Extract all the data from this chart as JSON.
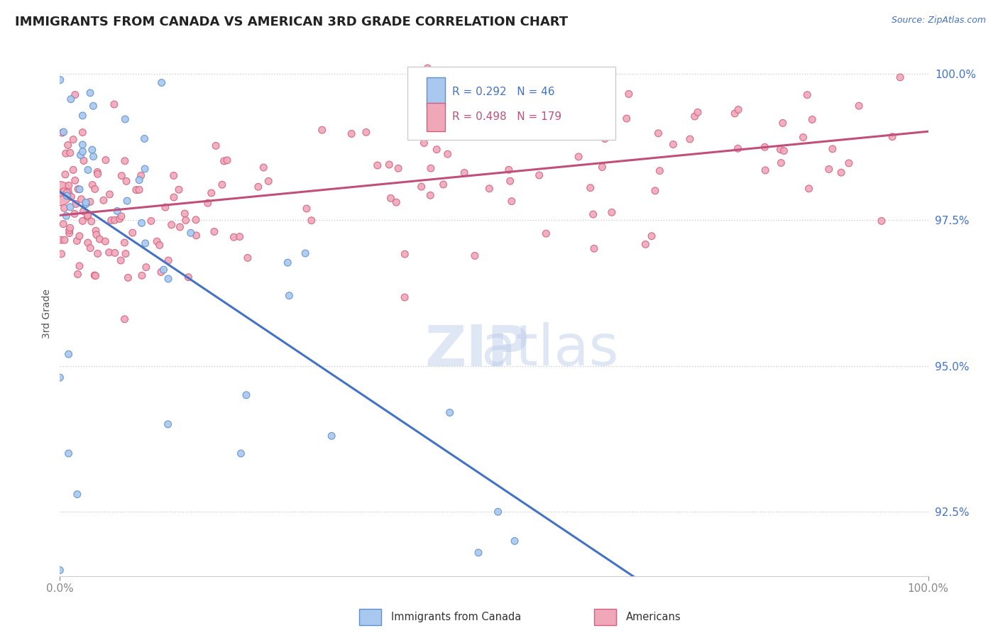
{
  "title": "IMMIGRANTS FROM CANADA VS AMERICAN 3RD GRADE CORRELATION CHART",
  "source_text": "Source: ZipAtlas.com",
  "ylabel": "3rd Grade",
  "xlim": [
    0.0,
    1.0
  ],
  "ylim": [
    0.914,
    1.004
  ],
  "yticks": [
    0.925,
    0.95,
    0.975,
    1.0
  ],
  "ytick_labels": [
    "92.5%",
    "95.0%",
    "97.5%",
    "100.0%"
  ],
  "xtick_labels": [
    "0.0%",
    "100.0%"
  ],
  "legend_r_blue": "0.292",
  "legend_n_blue": "46",
  "legend_r_pink": "0.498",
  "legend_n_pink": "179",
  "blue_color": "#a8c8f0",
  "pink_color": "#f0a8b8",
  "blue_edge_color": "#6090c8",
  "pink_edge_color": "#d06080",
  "blue_line_color": "#4472c4",
  "pink_line_color": "#c0507a",
  "watermark_zip": "ZIP",
  "watermark_atlas": "atlas",
  "background_color": "#ffffff",
  "grid_color": "#cccccc",
  "seed": 12345
}
